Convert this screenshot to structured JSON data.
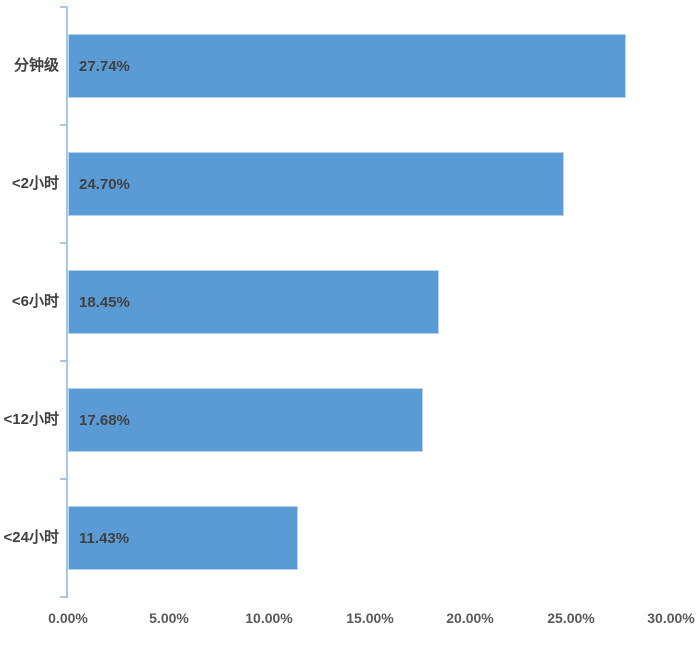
{
  "chart_data": {
    "type": "bar",
    "orientation": "horizontal",
    "title": "",
    "xlabel": "",
    "ylabel": "",
    "categories": [
      "分钟级",
      "<2小时",
      "<6小时",
      "<12小时",
      "<24小时"
    ],
    "values": [
      27.74,
      24.7,
      18.45,
      17.68,
      11.43
    ],
    "data_labels": [
      "27.74%",
      "24.70%",
      "18.45%",
      "17.68%",
      "11.43%"
    ],
    "x_ticks": [
      "0.00%",
      "5.00%",
      "10.00%",
      "15.00%",
      "20.00%",
      "25.00%",
      "30.00%"
    ],
    "xlim": [
      0,
      30
    ],
    "grid": false,
    "legend": "none",
    "colors": {
      "bar_fill": "#5B9BD5",
      "bar_border": "#B7D3EE",
      "axis_line": "#A5C8E9",
      "data_label_text": "#404040",
      "axis_tick_text": "#595959",
      "background": "#FFFFFF"
    }
  }
}
